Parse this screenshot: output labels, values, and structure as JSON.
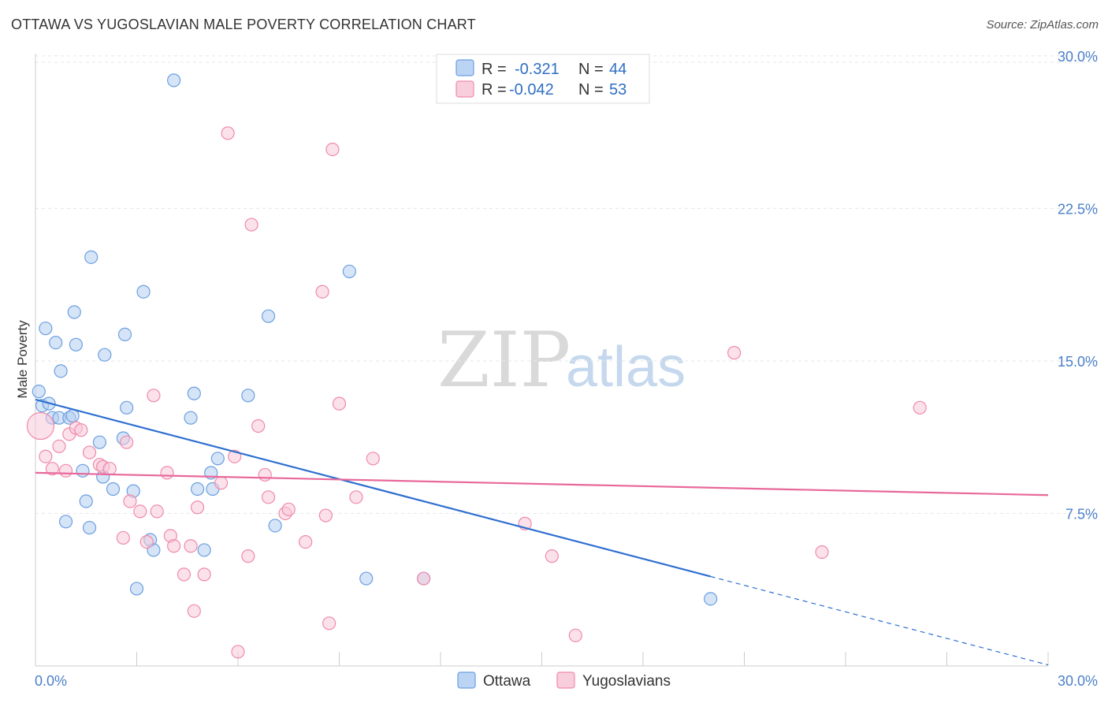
{
  "title": "OTTAWA VS YUGOSLAVIAN MALE POVERTY CORRELATION CHART",
  "source": "Source: ZipAtlas.com",
  "colors": {
    "ottawa": "#6a9fe0",
    "ottawa_line": "#2f6fd0",
    "yugoslavians": "#f08aaa",
    "yugoslavians_line": "#e8689a",
    "tick_label": "#4a7fc8"
  },
  "legend_top": {
    "rows": [
      {
        "r_label": "R =",
        "r_value": "-0.321",
        "n_label": "N =",
        "n_value": "44"
      },
      {
        "r_label": "R =",
        "r_value": "-0.042",
        "n_label": "N =",
        "n_value": "53"
      }
    ]
  },
  "legend_bottom": {
    "items": [
      "Ottawa",
      "Yugoslavians"
    ]
  },
  "watermark": {
    "part1": "ZIP",
    "part2": "atlas"
  },
  "chart_data": {
    "type": "scatter",
    "title": "OTTAWA VS YUGOSLAVIAN MALE POVERTY CORRELATION CHART",
    "xlabel": "",
    "ylabel": "Male Poverty",
    "xlim": [
      0,
      30
    ],
    "ylim": [
      0,
      30.5
    ],
    "x_tick_labels": [
      "0.0%",
      "30.0%"
    ],
    "y_ticks": [
      7.5,
      15.0,
      22.5,
      30.0
    ],
    "y_tick_labels": [
      "7.5%",
      "15.0%",
      "22.5%",
      "30.0%"
    ],
    "grid": true,
    "legend_position": "top-center",
    "series": [
      {
        "name": "Ottawa",
        "points": [
          [
            0.1,
            13.5
          ],
          [
            0.2,
            12.8
          ],
          [
            0.3,
            16.6
          ],
          [
            0.4,
            12.9
          ],
          [
            0.5,
            12.2
          ],
          [
            0.6,
            15.9
          ],
          [
            0.7,
            12.2
          ],
          [
            0.75,
            14.5
          ],
          [
            0.9,
            7.1
          ],
          [
            1.0,
            12.2
          ],
          [
            1.1,
            12.3
          ],
          [
            1.15,
            17.4
          ],
          [
            1.2,
            15.8
          ],
          [
            1.4,
            9.6
          ],
          [
            1.5,
            8.1
          ],
          [
            1.6,
            6.8
          ],
          [
            1.65,
            20.1
          ],
          [
            1.9,
            11.0
          ],
          [
            2.0,
            9.3
          ],
          [
            2.05,
            15.3
          ],
          [
            2.3,
            8.7
          ],
          [
            2.6,
            11.2
          ],
          [
            2.65,
            16.3
          ],
          [
            2.7,
            12.7
          ],
          [
            2.9,
            8.6
          ],
          [
            3.0,
            3.8
          ],
          [
            3.2,
            18.4
          ],
          [
            3.4,
            6.2
          ],
          [
            3.5,
            5.7
          ],
          [
            4.1,
            28.8
          ],
          [
            4.6,
            12.2
          ],
          [
            4.7,
            13.4
          ],
          [
            4.8,
            8.7
          ],
          [
            5.0,
            5.7
          ],
          [
            5.2,
            9.5
          ],
          [
            5.25,
            8.7
          ],
          [
            5.4,
            10.2
          ],
          [
            6.3,
            13.3
          ],
          [
            6.9,
            17.2
          ],
          [
            7.1,
            6.9
          ],
          [
            9.3,
            19.4
          ],
          [
            9.8,
            4.3
          ],
          [
            11.5,
            4.3
          ],
          [
            20.0,
            3.3
          ]
        ]
      },
      {
        "name": "Yugoslavians",
        "points": [
          [
            0.15,
            11.8
          ],
          [
            0.3,
            10.3
          ],
          [
            0.5,
            9.7
          ],
          [
            0.7,
            10.8
          ],
          [
            0.9,
            9.6
          ],
          [
            1.0,
            11.4
          ],
          [
            1.2,
            11.7
          ],
          [
            1.35,
            11.6
          ],
          [
            1.6,
            10.5
          ],
          [
            1.9,
            9.9
          ],
          [
            2.0,
            9.8
          ],
          [
            2.2,
            9.7
          ],
          [
            2.6,
            6.3
          ],
          [
            2.7,
            11.0
          ],
          [
            2.8,
            8.1
          ],
          [
            3.1,
            7.6
          ],
          [
            3.3,
            6.1
          ],
          [
            3.5,
            13.3
          ],
          [
            3.6,
            7.6
          ],
          [
            3.9,
            9.5
          ],
          [
            4.0,
            6.4
          ],
          [
            4.1,
            5.9
          ],
          [
            4.4,
            4.5
          ],
          [
            4.6,
            5.9
          ],
          [
            4.7,
            2.7
          ],
          [
            4.8,
            7.8
          ],
          [
            5.0,
            4.5
          ],
          [
            5.5,
            9.0
          ],
          [
            5.7,
            26.2
          ],
          [
            5.9,
            10.3
          ],
          [
            6.0,
            0.7
          ],
          [
            6.3,
            5.4
          ],
          [
            6.4,
            21.7
          ],
          [
            6.6,
            11.8
          ],
          [
            6.8,
            9.4
          ],
          [
            6.9,
            8.3
          ],
          [
            7.4,
            7.5
          ],
          [
            7.5,
            7.7
          ],
          [
            8.0,
            6.1
          ],
          [
            8.5,
            18.4
          ],
          [
            8.6,
            7.4
          ],
          [
            8.7,
            2.1
          ],
          [
            8.8,
            25.4
          ],
          [
            9.0,
            12.9
          ],
          [
            9.5,
            8.3
          ],
          [
            10.0,
            10.2
          ],
          [
            11.5,
            4.3
          ],
          [
            14.5,
            7.0
          ],
          [
            15.3,
            5.4
          ],
          [
            16.0,
            1.5
          ],
          [
            20.7,
            15.4
          ],
          [
            23.3,
            5.6
          ],
          [
            26.2,
            12.7
          ]
        ]
      }
    ],
    "trendlines": [
      {
        "name": "Ottawa",
        "x": [
          0,
          20.0
        ],
        "y": [
          13.1,
          4.4
        ],
        "dashed_extension_to_x": 30
      },
      {
        "name": "Yugoslavians",
        "x": [
          0,
          30
        ],
        "y": [
          9.5,
          8.4
        ]
      }
    ]
  }
}
